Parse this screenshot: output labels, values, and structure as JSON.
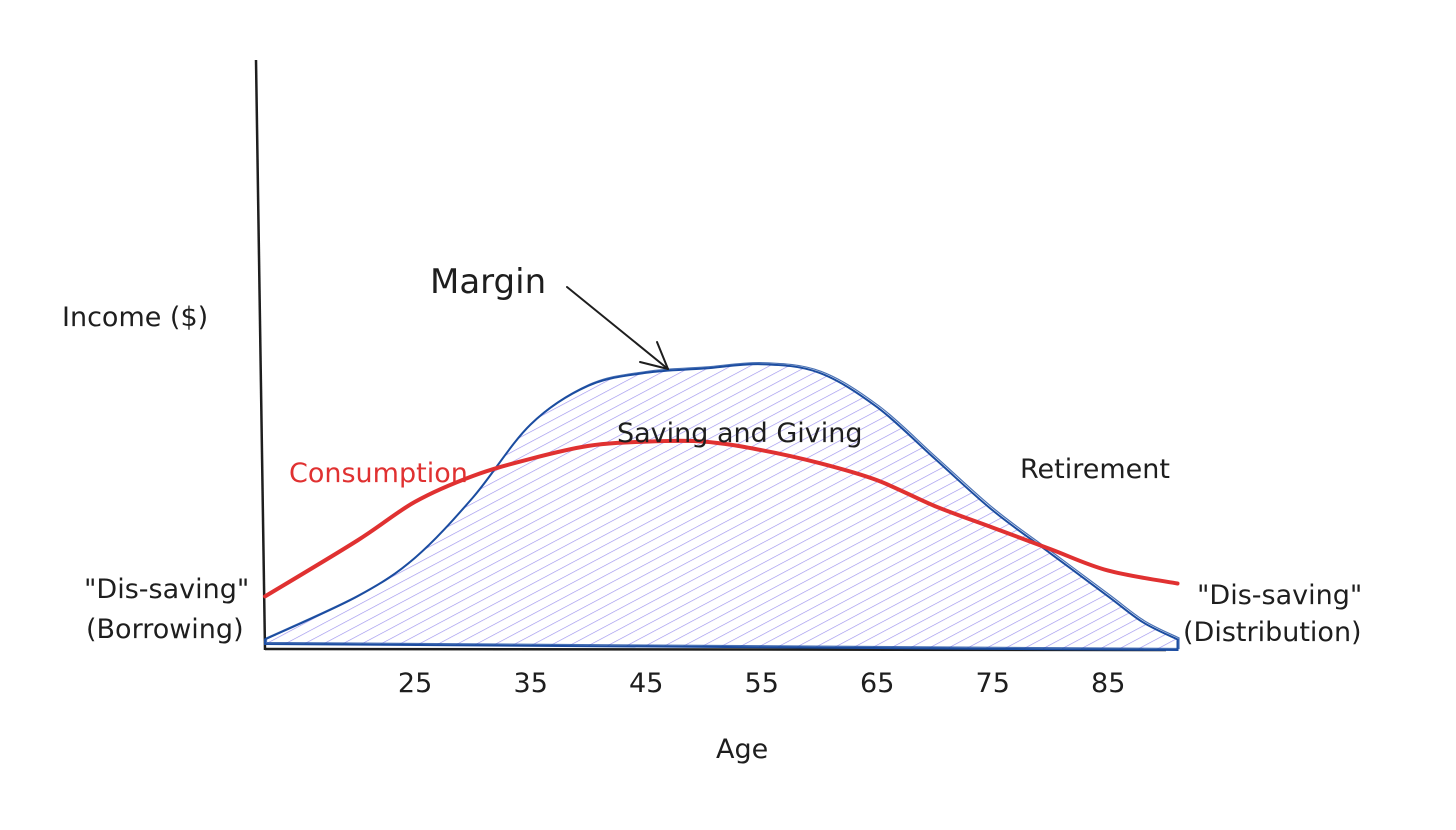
{
  "chart_data": {
    "type": "area",
    "title": "",
    "xlabel": "Age",
    "ylabel": "Income ($)",
    "x_ticks": [
      25,
      35,
      45,
      55,
      65,
      75,
      85
    ],
    "grid": false,
    "series": [
      {
        "name": "Consumption",
        "kind": "line",
        "color": "#e03131",
        "points": [
          [
            12,
            0.12
          ],
          [
            20,
            0.25
          ],
          [
            25,
            0.34
          ],
          [
            30,
            0.4
          ],
          [
            35,
            0.44
          ],
          [
            40,
            0.47
          ],
          [
            45,
            0.48
          ],
          [
            50,
            0.48
          ],
          [
            55,
            0.46
          ],
          [
            60,
            0.43
          ],
          [
            65,
            0.39
          ],
          [
            70,
            0.33
          ],
          [
            75,
            0.28
          ],
          [
            80,
            0.23
          ],
          [
            85,
            0.18
          ],
          [
            91,
            0.15
          ]
        ]
      },
      {
        "kind": "area",
        "color": "#1c4da1",
        "fill_color": "#7c6ee6",
        "points": [
          [
            12,
            0.02
          ],
          [
            20,
            0.12
          ],
          [
            25,
            0.21
          ],
          [
            30,
            0.35
          ],
          [
            35,
            0.52
          ],
          [
            40,
            0.61
          ],
          [
            45,
            0.64
          ],
          [
            50,
            0.65
          ],
          [
            55,
            0.66
          ],
          [
            60,
            0.64
          ],
          [
            65,
            0.56
          ],
          [
            70,
            0.44
          ],
          [
            75,
            0.32
          ],
          [
            80,
            0.22
          ],
          [
            85,
            0.12
          ],
          [
            88,
            0.06
          ],
          [
            91,
            0.02
          ]
        ]
      }
    ],
    "annotations": {
      "margin": "Margin",
      "saving": "Saving and Giving",
      "consumption": "Consumption",
      "retirement": "Retirement",
      "dissaving_left": "\"Dis-saving\"",
      "borrowing": "(Borrowing)",
      "dissaving_right": "\"Dis-saving\"",
      "distribution": "(Distribution)"
    }
  }
}
